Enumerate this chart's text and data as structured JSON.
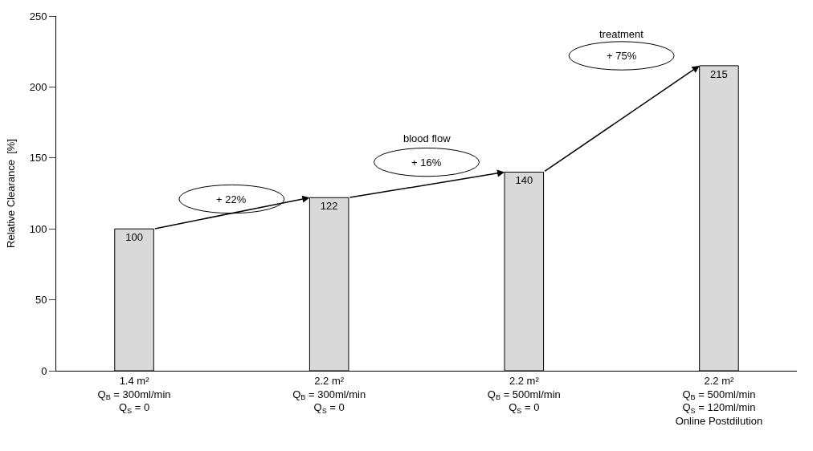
{
  "chart_data": {
    "type": "bar",
    "ylabel": "Relative Clearance  [%]",
    "categories": [
      "1.4 m²\nQ$_{B}$ = 300ml/min\nQ$_{S}$ = 0",
      "2.2 m²\nQ$_{B}$ = 300ml/min\nQ$_{S}$ = 0",
      "2.2 m²\nQ$_{B}$ = 500ml/min\nQ$_{S}$ = 0",
      "2.2 m²\nQ$_{B}$ = 500ml/min\nQ$_{S}$ = 120ml/min\nOnline Postdilution"
    ],
    "values": [
      100,
      122,
      140,
      215
    ],
    "color": "#d9d9d9",
    "data_labels": true,
    "ylim": [
      0,
      250
    ],
    "yticks": [
      0,
      50,
      100,
      150,
      200,
      250
    ],
    "legend": false,
    "annotations": [
      "+ 22%",
      "blood flow",
      "+ 16%",
      "treatment",
      "+ 75%"
    ]
  }
}
